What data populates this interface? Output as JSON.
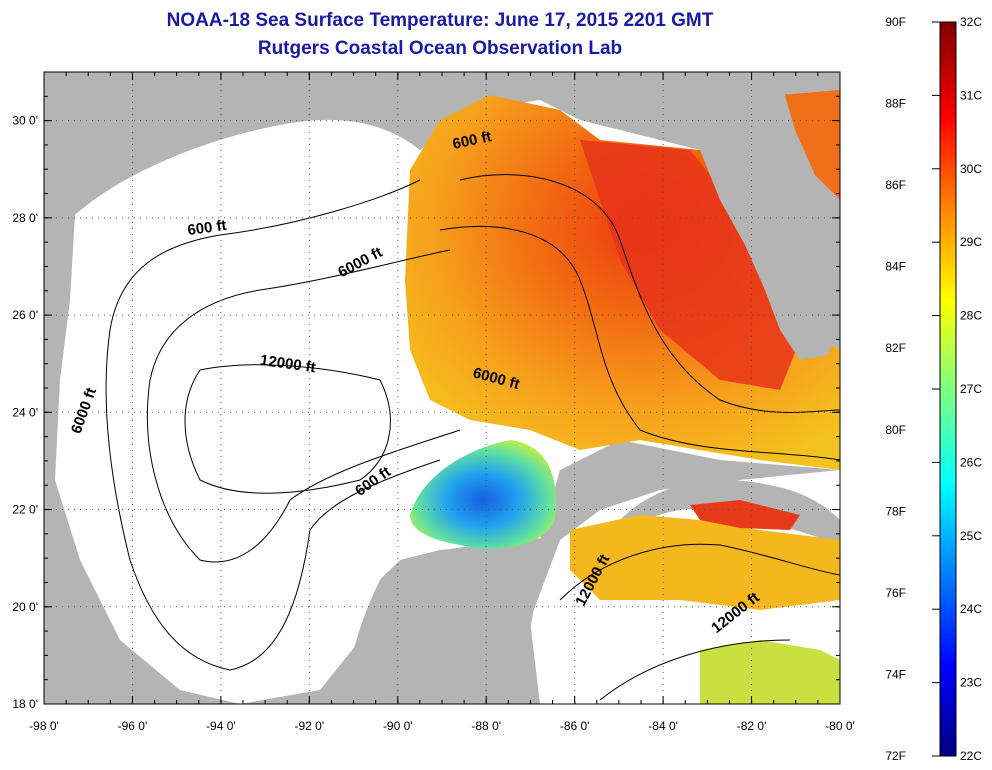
{
  "header": {
    "title": "NOAA-18 Sea Surface Temperature:  June 17, 2015 2201 GMT",
    "subtitle": "Rutgers Coastal Ocean Observation Lab"
  },
  "map": {
    "lon_range": [
      -98,
      -80
    ],
    "lat_range": [
      18,
      31
    ],
    "x_ticks": [
      "-98 0'",
      "-96 0'",
      "-94 0'",
      "-92 0'",
      "-90 0'",
      "-88 0'",
      "-86 0'",
      "-84 0'",
      "-82 0'",
      "-80 0'"
    ],
    "y_ticks": [
      "18 0'",
      "20 0'",
      "22 0'",
      "24 0'",
      "26 0'",
      "28 0'",
      "30 0'"
    ],
    "grid": "dotted",
    "land_color": "#b4b4b4",
    "no_data_color": "#ffffff",
    "contour_labels": [
      {
        "text": "600 ft",
        "lon": -94.3,
        "lat": 27.7,
        "angle": -8
      },
      {
        "text": "600 ft",
        "lon": -88.3,
        "lat": 29.5,
        "angle": -12
      },
      {
        "text": "600 ft",
        "lon": -90.5,
        "lat": 22.5,
        "angle": -35
      },
      {
        "text": "6000 ft",
        "lon": -90.8,
        "lat": 27.0,
        "angle": -28
      },
      {
        "text": "6000 ft",
        "lon": -97.0,
        "lat": 24.0,
        "angle": -70
      },
      {
        "text": "6000 ft",
        "lon": -87.8,
        "lat": 24.6,
        "angle": 15
      },
      {
        "text": "12000 ft",
        "lon": -92.5,
        "lat": 24.9,
        "angle": 8
      },
      {
        "text": "12000 ft",
        "lon": -85.5,
        "lat": 20.5,
        "angle": -62
      },
      {
        "text": "12000 ft",
        "lon": -82.3,
        "lat": 19.8,
        "angle": -38
      }
    ]
  },
  "colorbar": {
    "f_labels": [
      "90F",
      "88F",
      "86F",
      "84F",
      "82F",
      "80F",
      "78F",
      "76F",
      "74F",
      "72F"
    ],
    "c_labels": [
      "32C",
      "31C",
      "30C",
      "29C",
      "28C",
      "27C",
      "26C",
      "25C",
      "24C",
      "23C",
      "22C"
    ],
    "colors": [
      "#000080",
      "#0000ff",
      "#0080ff",
      "#00ffff",
      "#80ff80",
      "#ffff00",
      "#ff8000",
      "#ff0000",
      "#800000"
    ]
  }
}
